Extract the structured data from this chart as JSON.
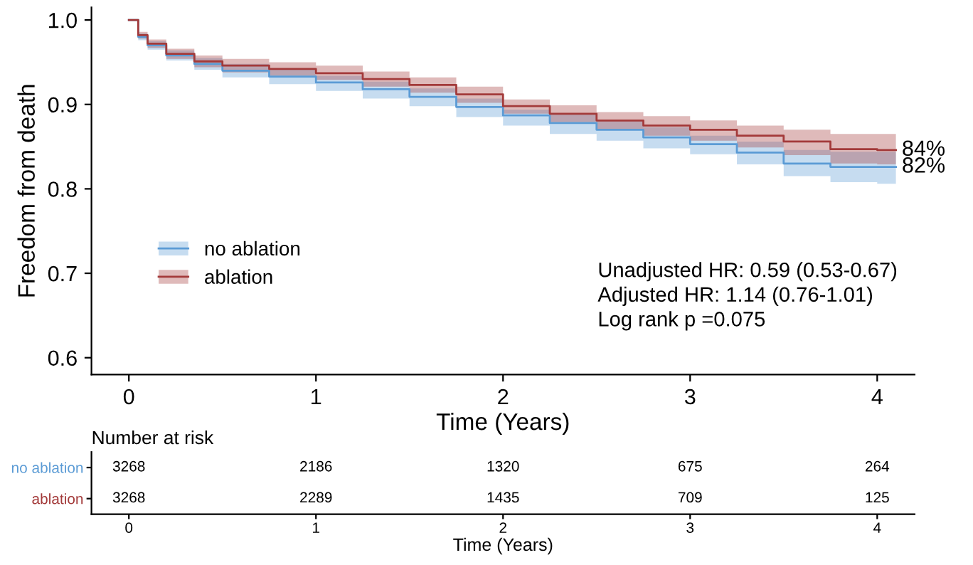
{
  "chart_data": [
    {
      "type": "step",
      "xlabel": "Time (Years)",
      "ylabel": "Freedom from death",
      "x": [
        0,
        0.05,
        0.1,
        0.2,
        0.35,
        0.5,
        0.75,
        1,
        1.25,
        1.5,
        1.75,
        2,
        2.25,
        2.5,
        2.75,
        3,
        3.25,
        3.5,
        3.75,
        4,
        4.1
      ],
      "series": [
        {
          "name": "no ablation",
          "color": "#5b9bd5",
          "values": [
            1.0,
            0.98,
            0.97,
            0.958,
            0.948,
            0.94,
            0.933,
            0.926,
            0.918,
            0.909,
            0.897,
            0.887,
            0.878,
            0.87,
            0.861,
            0.853,
            0.843,
            0.83,
            0.826,
            0.826,
            0.826
          ],
          "lower": [
            1.0,
            0.976,
            0.965,
            0.952,
            0.941,
            0.932,
            0.924,
            0.916,
            0.907,
            0.898,
            0.885,
            0.875,
            0.865,
            0.857,
            0.848,
            0.841,
            0.829,
            0.815,
            0.808,
            0.806,
            0.806
          ],
          "upper": [
            1.0,
            0.984,
            0.975,
            0.964,
            0.955,
            0.948,
            0.941,
            0.934,
            0.927,
            0.919,
            0.907,
            0.894,
            0.889,
            0.881,
            0.873,
            0.863,
            0.856,
            0.846,
            0.844,
            0.844,
            0.844
          ]
        },
        {
          "name": "ablation",
          "color": "#a33a3a",
          "values": [
            1.0,
            0.982,
            0.972,
            0.96,
            0.951,
            0.946,
            0.942,
            0.937,
            0.93,
            0.923,
            0.912,
            0.898,
            0.889,
            0.881,
            0.875,
            0.87,
            0.863,
            0.856,
            0.847,
            0.846,
            0.846
          ],
          "lower": [
            1.0,
            0.978,
            0.967,
            0.954,
            0.944,
            0.938,
            0.934,
            0.929,
            0.921,
            0.914,
            0.902,
            0.889,
            0.879,
            0.87,
            0.863,
            0.857,
            0.849,
            0.84,
            0.83,
            0.829,
            0.829
          ],
          "upper": [
            1.0,
            0.986,
            0.977,
            0.966,
            0.958,
            0.954,
            0.95,
            0.946,
            0.939,
            0.932,
            0.921,
            0.906,
            0.899,
            0.891,
            0.886,
            0.881,
            0.875,
            0.87,
            0.865,
            0.865,
            0.865
          ]
        }
      ],
      "xlim": [
        -0.2,
        4.2
      ],
      "ylim": [
        0.58,
        1.015
      ],
      "xticks": [
        0,
        1,
        2,
        3,
        4
      ],
      "yticks": [
        {
          "value": 0.6,
          "label": "0.6"
        },
        {
          "value": 0.7,
          "label": "0.7"
        },
        {
          "value": 0.8,
          "label": "0.8"
        },
        {
          "value": 0.9,
          "label": "0.9"
        },
        {
          "value": 1.0,
          "label": "1.0"
        }
      ],
      "grid": false,
      "legend": "left",
      "annotations": [
        {
          "text": "84%",
          "x": 4.1,
          "y": 0.846
        },
        {
          "text": "82%",
          "x": 4.1,
          "y": 0.826
        },
        "Unadjusted HR: 0.59 (0.53-0.67)\nAdjusted HR: 1.14 (0.76-1.01)\nLog rank p =0.075"
      ]
    },
    {
      "type": "heatmap",
      "title": "Number at risk",
      "xlabel": "Time (Years)",
      "categories": [
        "0",
        "1",
        "2",
        "3",
        "4"
      ],
      "y_categories": [
        "no ablation",
        "ablation"
      ],
      "cells": [
        [
          3268,
          2186,
          1320,
          675,
          264
        ],
        [
          3268,
          2289,
          1435,
          709,
          125
        ]
      ],
      "data_labels": true
    }
  ]
}
